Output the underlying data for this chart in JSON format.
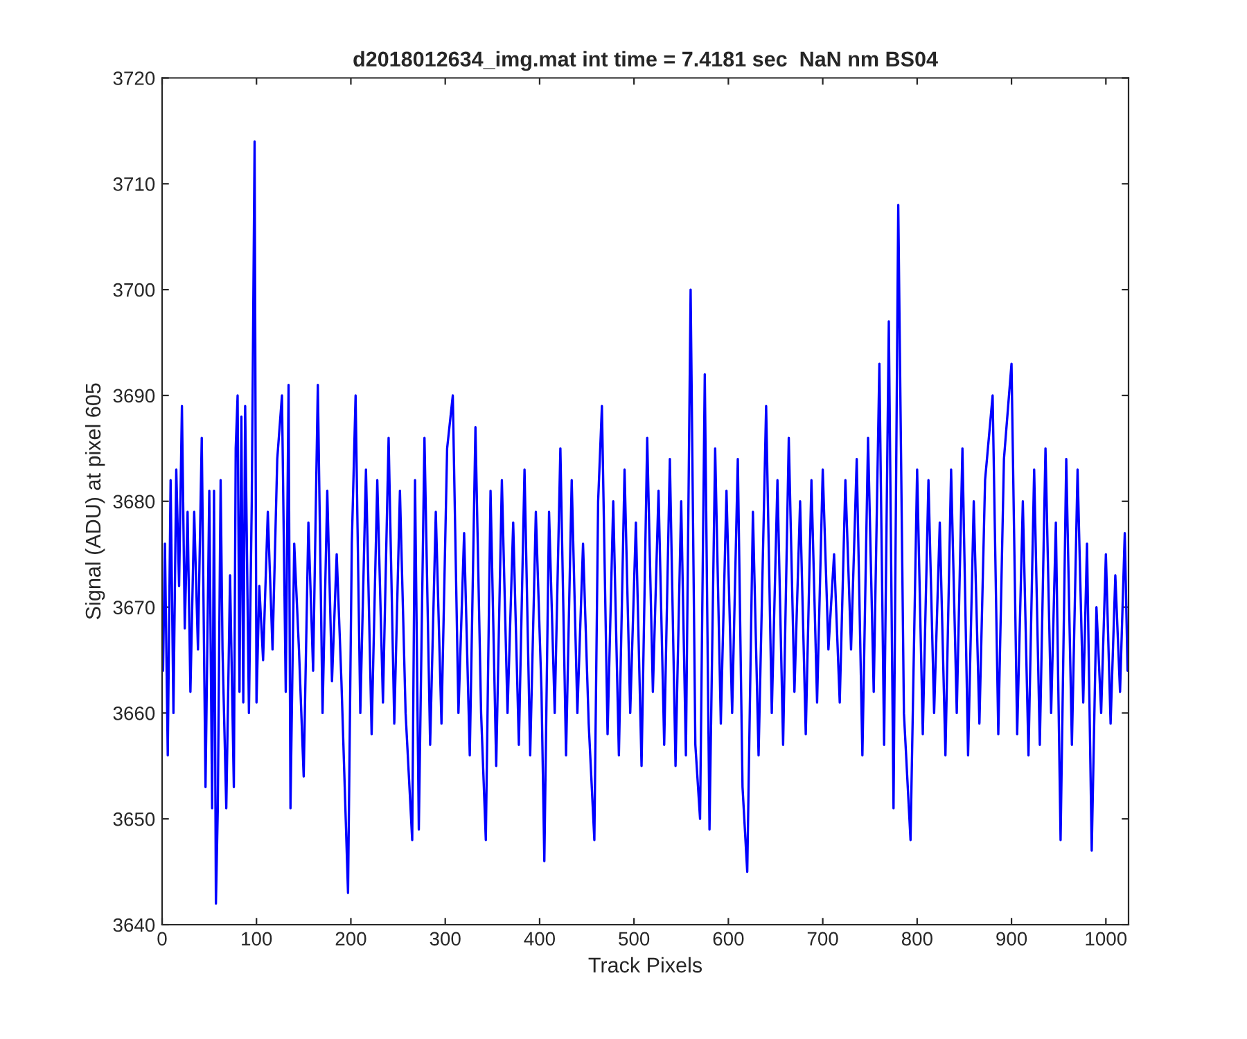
{
  "chart_data": {
    "type": "line",
    "title": "d2018012634_img.mat int time = 7.4181 sec  NaN nm BS04",
    "xlabel": "Track Pixels",
    "ylabel": "Signal (ADU) at pixel 605",
    "xlim": [
      0,
      1024
    ],
    "ylim": [
      3640,
      3720
    ],
    "xticks": [
      0,
      100,
      200,
      300,
      400,
      500,
      600,
      700,
      800,
      900,
      1000
    ],
    "yticks": [
      3640,
      3650,
      3660,
      3670,
      3680,
      3690,
      3700,
      3710,
      3720
    ],
    "grid": false,
    "series": [
      {
        "color": "#0000ff",
        "x": [
          1,
          3,
          6,
          9,
          12,
          15,
          18,
          21,
          24,
          27,
          30,
          34,
          38,
          42,
          46,
          50,
          53,
          55,
          57,
          59,
          62,
          64,
          68,
          72,
          76,
          78,
          80,
          82,
          84,
          86,
          88,
          92,
          95,
          98,
          100,
          103,
          107,
          112,
          117,
          122,
          127,
          131,
          134,
          136,
          140,
          145,
          150,
          155,
          160,
          165,
          170,
          175,
          180,
          185,
          190,
          197,
          201,
          205,
          210,
          216,
          222,
          228,
          234,
          240,
          246,
          252,
          258,
          265,
          268,
          272,
          278,
          284,
          290,
          296,
          302,
          308,
          314,
          320,
          326,
          332,
          338,
          343,
          348,
          354,
          360,
          366,
          372,
          378,
          384,
          390,
          396,
          402,
          405,
          410,
          416,
          422,
          428,
          434,
          440,
          446,
          452,
          458,
          462,
          466,
          472,
          478,
          484,
          490,
          496,
          502,
          508,
          514,
          520,
          526,
          532,
          538,
          544,
          550,
          555,
          560,
          565,
          570,
          575,
          580,
          586,
          592,
          598,
          604,
          610,
          615,
          620,
          626,
          632,
          640,
          646,
          652,
          658,
          664,
          670,
          676,
          682,
          688,
          694,
          700,
          706,
          712,
          718,
          724,
          730,
          736,
          742,
          748,
          754,
          760,
          765,
          770,
          775,
          780,
          786,
          793,
          800,
          806,
          812,
          818,
          824,
          830,
          836,
          842,
          848,
          854,
          860,
          866,
          872,
          880,
          886,
          892,
          900,
          906,
          912,
          918,
          924,
          930,
          936,
          942,
          947,
          952,
          958,
          964,
          970,
          976,
          980,
          985,
          990,
          995,
          1000,
          1005,
          1010,
          1015,
          1020,
          1023
        ],
        "values": [
          3664,
          3676,
          3656,
          3682,
          3660,
          3683,
          3672,
          3689,
          3668,
          3679,
          3662,
          3679,
          3666,
          3686,
          3653,
          3681,
          3651,
          3681,
          3642,
          3651,
          3682,
          3666,
          3651,
          3673,
          3653,
          3685,
          3690,
          3662,
          3688,
          3661,
          3689,
          3660,
          3680,
          3714,
          3661,
          3672,
          3665,
          3679,
          3666,
          3684,
          3690,
          3662,
          3691,
          3651,
          3676,
          3666,
          3654,
          3678,
          3664,
          3691,
          3660,
          3681,
          3663,
          3675,
          3663,
          3643,
          3676,
          3690,
          3660,
          3683,
          3658,
          3682,
          3661,
          3686,
          3659,
          3681,
          3660,
          3648,
          3682,
          3649,
          3686,
          3657,
          3679,
          3659,
          3685,
          3690,
          3660,
          3677,
          3656,
          3687,
          3660,
          3648,
          3681,
          3655,
          3682,
          3660,
          3678,
          3657,
          3683,
          3656,
          3679,
          3662,
          3646,
          3679,
          3660,
          3685,
          3656,
          3682,
          3660,
          3676,
          3659,
          3648,
          3680,
          3689,
          3658,
          3680,
          3656,
          3683,
          3660,
          3678,
          3655,
          3686,
          3662,
          3681,
          3657,
          3684,
          3655,
          3680,
          3656,
          3700,
          3657,
          3650,
          3692,
          3649,
          3685,
          3659,
          3681,
          3660,
          3684,
          3653,
          3645,
          3679,
          3656,
          3689,
          3660,
          3682,
          3657,
          3686,
          3662,
          3680,
          3658,
          3682,
          3661,
          3683,
          3666,
          3675,
          3661,
          3682,
          3666,
          3684,
          3656,
          3686,
          3662,
          3693,
          3657,
          3697,
          3651,
          3708,
          3660,
          3648,
          3683,
          3658,
          3682,
          3660,
          3678,
          3656,
          3683,
          3660,
          3685,
          3656,
          3680,
          3659,
          3682,
          3690,
          3658,
          3684,
          3693,
          3658,
          3680,
          3656,
          3683,
          3657,
          3685,
          3660,
          3678,
          3648,
          3684,
          3657,
          3683,
          3661,
          3676,
          3647,
          3670,
          3660,
          3675,
          3659,
          3673,
          3662,
          3677,
          3664
        ]
      }
    ]
  }
}
